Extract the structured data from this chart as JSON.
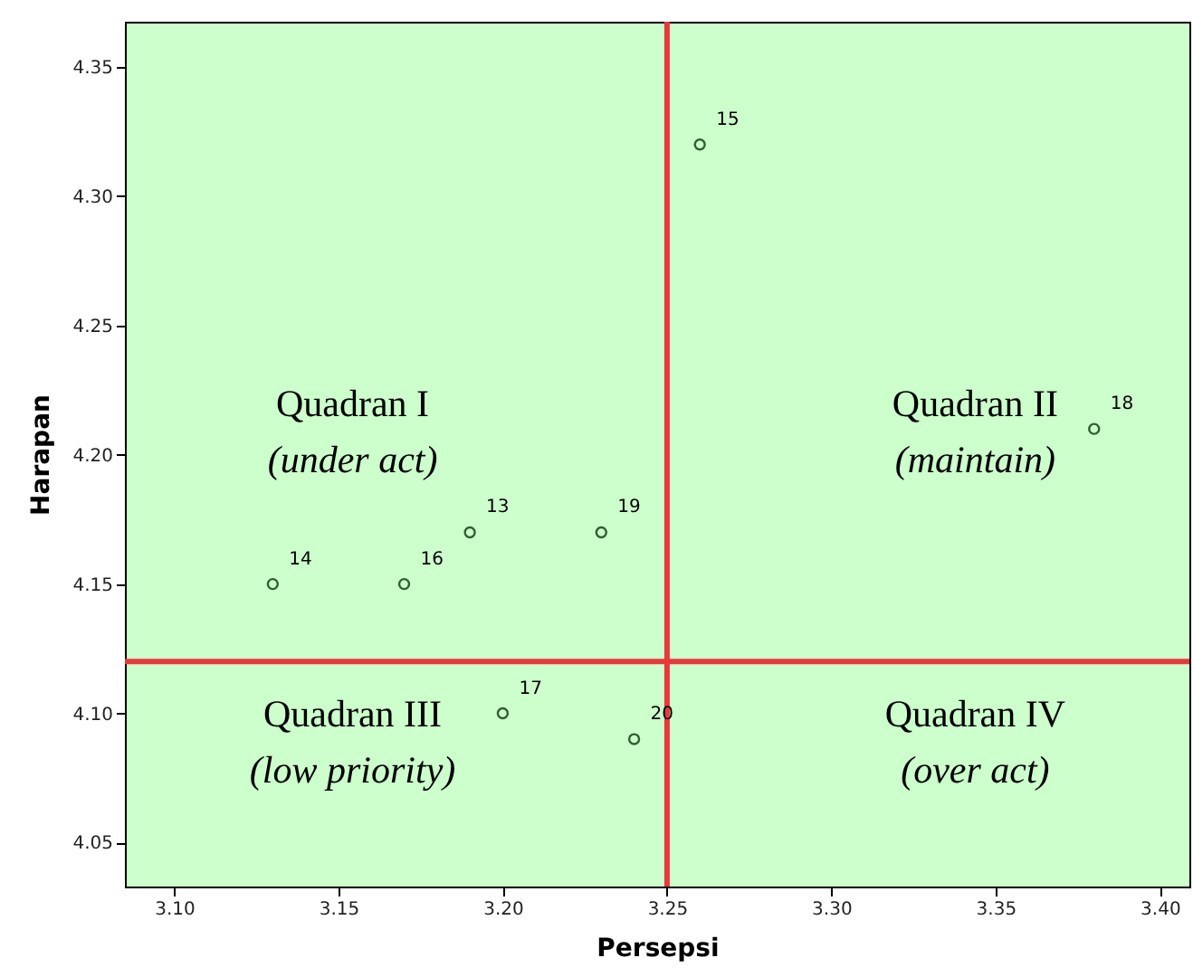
{
  "chart_data": {
    "type": "scatter",
    "xlabel": "Persepsi",
    "ylabel": "Harapan",
    "x": [
      3.19,
      3.13,
      3.26,
      3.17,
      3.2,
      3.38,
      3.23,
      3.24
    ],
    "series": [
      {
        "color": "#2f5f2f",
        "values": [
          4.17,
          4.15,
          4.32,
          4.15,
          4.1,
          4.21,
          4.17,
          4.09
        ]
      }
    ],
    "marker": "circle",
    "grid": false,
    "xlim": [
      3.085,
      3.409
    ],
    "xticks": [
      {
        "value": 3.1,
        "label": "3.10"
      },
      3.15,
      {
        "value": 3.2,
        "label": "3.20"
      },
      3.25,
      {
        "value": 3.3,
        "label": "3.30"
      },
      3.35,
      {
        "value": 3.4,
        "label": "3.40"
      }
    ],
    "ylim": [
      4.033,
      4.3675
    ],
    "yticks": [
      4.05,
      {
        "value": 4.1,
        "label": "4.10"
      },
      4.15,
      {
        "value": 4.2,
        "label": "4.20"
      },
      4.25,
      {
        "value": 4.3,
        "label": "4.30"
      },
      4.35
    ],
    "ref_lines": [
      {
        "axis": "x",
        "value": 3.25,
        "color": "#e8383d"
      },
      {
        "axis": "y",
        "value": 4.12,
        "color": "#e8383d"
      }
    ],
    "annotations": [
      {
        "text": "13",
        "x": 3.19,
        "y": 4.17
      },
      {
        "text": "14",
        "x": 3.13,
        "y": 4.15
      },
      {
        "text": "15",
        "x": 3.26,
        "y": 4.32
      },
      {
        "text": "16",
        "x": 3.17,
        "y": 4.15
      },
      {
        "text": "17",
        "x": 3.2,
        "y": 4.1
      },
      {
        "text": "18",
        "x": 3.38,
        "y": 4.21
      },
      {
        "text": "19",
        "x": 3.23,
        "y": 4.17
      },
      {
        "text": "20",
        "x": 3.24,
        "y": 4.09
      },
      "Quadran I",
      "(under act)",
      "Quadran II",
      "(maintain)",
      "Quadran III",
      "(low priority)",
      "Quadran IV",
      "(over act)"
    ]
  }
}
